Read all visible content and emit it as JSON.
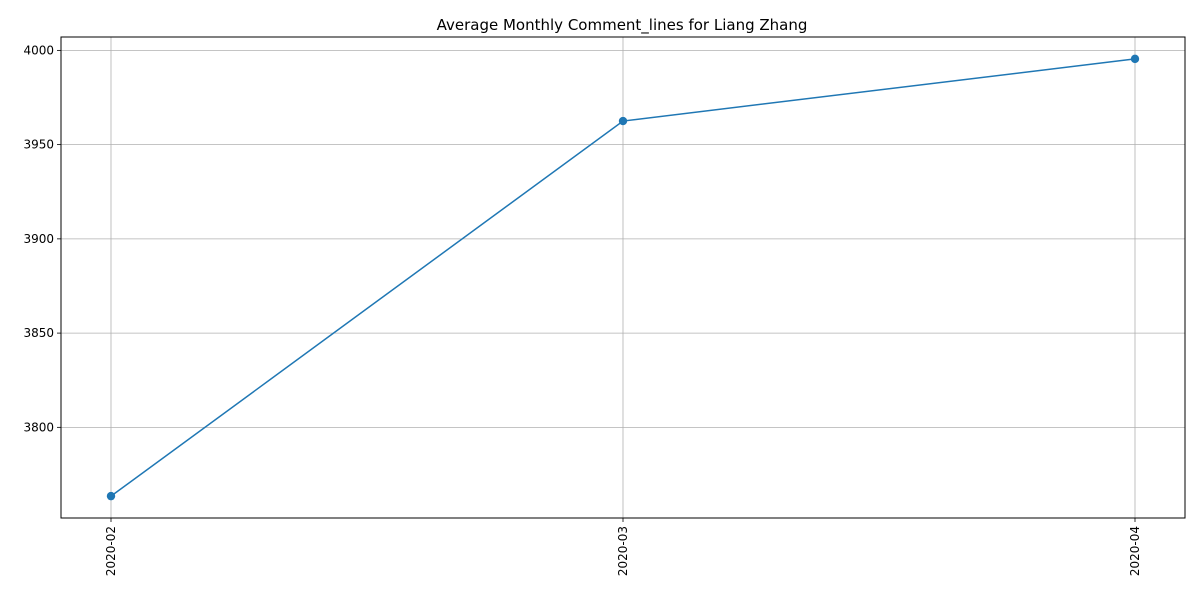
{
  "chart_data": {
    "type": "line",
    "title": "Average Monthly Comment_lines for Liang Zhang",
    "xlabel": "",
    "ylabel": "",
    "categories": [
      "2020-02",
      "2020-03",
      "2020-04"
    ],
    "series": [
      {
        "values": [
          3763.5,
          3962.5,
          3995.5
        ],
        "color": "#1f77b4",
        "marker": "circle"
      }
    ],
    "yticks": [
      3800,
      3850,
      3900,
      3950,
      4000
    ],
    "ylim": [
      3751.9,
      4007.1
    ],
    "grid": true,
    "legend": "none",
    "x_tick_rotation": "vertical"
  }
}
